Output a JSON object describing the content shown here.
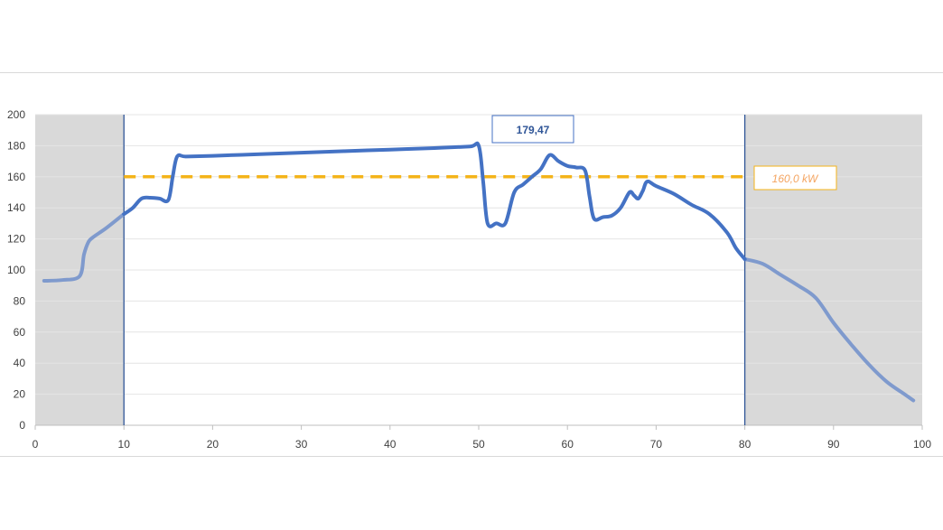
{
  "chart_data": {
    "type": "line",
    "title": "",
    "xlabel": "",
    "ylabel": "",
    "xlim": [
      0,
      100
    ],
    "ylim": [
      0,
      200
    ],
    "xticks": [
      0,
      10,
      20,
      30,
      40,
      50,
      60,
      70,
      80,
      90,
      100
    ],
    "yticks": [
      0,
      20,
      40,
      60,
      80,
      100,
      120,
      140,
      160,
      180,
      200
    ],
    "grid": "horizontal",
    "shaded_ranges": [
      [
        0,
        10
      ],
      [
        80,
        100
      ]
    ],
    "vertical_markers": [
      10,
      80
    ],
    "reference_line": {
      "y": 160,
      "x_start": 10,
      "x_end": 80,
      "label": "160,0 kW",
      "color": "#F4B41A"
    },
    "peak_label": {
      "text": "179,47",
      "x": 50,
      "y": 179.47
    },
    "colors": {
      "main": "#4472C4",
      "faded": "#7F9ACD",
      "shade": "#D9D9D9",
      "marker": "#2F5597",
      "label_text": "#F4A460"
    },
    "series": [
      {
        "x": [
          1,
          3,
          5,
          5.5,
          6,
          6.5,
          8,
          10,
          11,
          12,
          13,
          14,
          15,
          15.5,
          16,
          17,
          20,
          25,
          30,
          35,
          40,
          45,
          49,
          50,
          50.5,
          51,
          52,
          53,
          54,
          55,
          56,
          57,
          58,
          59,
          60,
          61,
          62,
          62.5,
          63,
          64,
          65,
          66,
          67,
          67.5,
          68,
          68.5,
          69,
          70,
          72,
          74,
          76,
          78,
          79,
          80,
          82,
          84,
          86,
          88,
          90,
          92,
          94,
          96,
          98,
          99
        ],
        "y": [
          93,
          93.5,
          96,
          110,
          118,
          121,
          127,
          136,
          140,
          146,
          146.5,
          146,
          145,
          160,
          173,
          173,
          173.5,
          174.5,
          175.5,
          176.5,
          177.5,
          178.5,
          179.5,
          180,
          157,
          130,
          130,
          130,
          150,
          155,
          160,
          165,
          174,
          170,
          167,
          166,
          164,
          147,
          133,
          134,
          135,
          140,
          150,
          148,
          146,
          151,
          157,
          154,
          149,
          142,
          136,
          124,
          114,
          107,
          104,
          97,
          90,
          82,
          66,
          52,
          39,
          28,
          20,
          16
        ]
      }
    ]
  }
}
